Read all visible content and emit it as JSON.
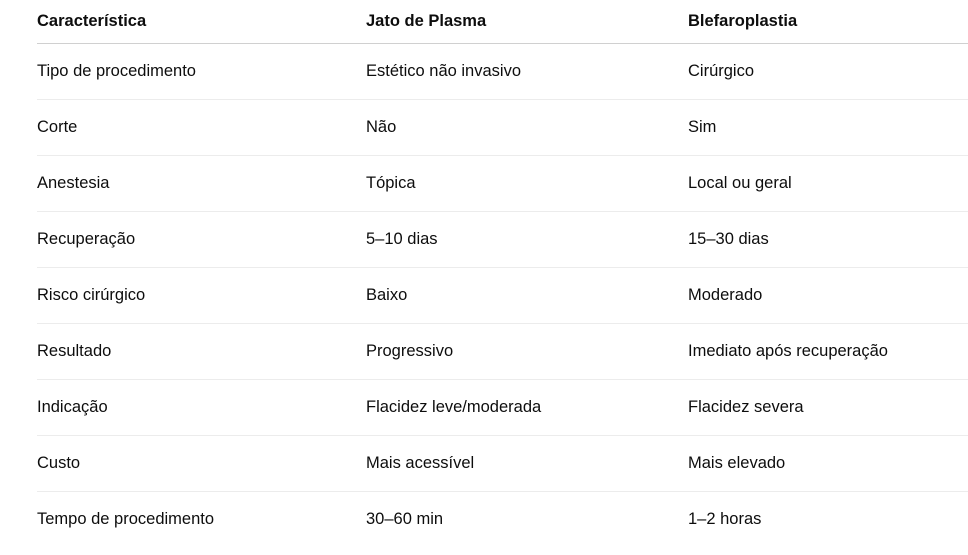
{
  "table": {
    "headers": [
      "Característica",
      "Jato de Plasma",
      "Blefaroplastia"
    ],
    "rows": [
      [
        "Tipo de procedimento",
        "Estético não invasivo",
        "Cirúrgico"
      ],
      [
        "Corte",
        "Não",
        "Sim"
      ],
      [
        "Anestesia",
        "Tópica",
        "Local ou geral"
      ],
      [
        "Recuperação",
        "5–10 dias",
        "15–30 dias"
      ],
      [
        "Risco cirúrgico",
        "Baixo",
        "Moderado"
      ],
      [
        "Resultado",
        "Progressivo",
        "Imediato após recuperação"
      ],
      [
        "Indicação",
        "Flacidez leve/moderada",
        "Flacidez severa"
      ],
      [
        "Custo",
        "Mais acessível",
        "Mais elevado"
      ],
      [
        "Tempo de procedimento",
        "30–60 min",
        "1–2 horas"
      ]
    ]
  }
}
